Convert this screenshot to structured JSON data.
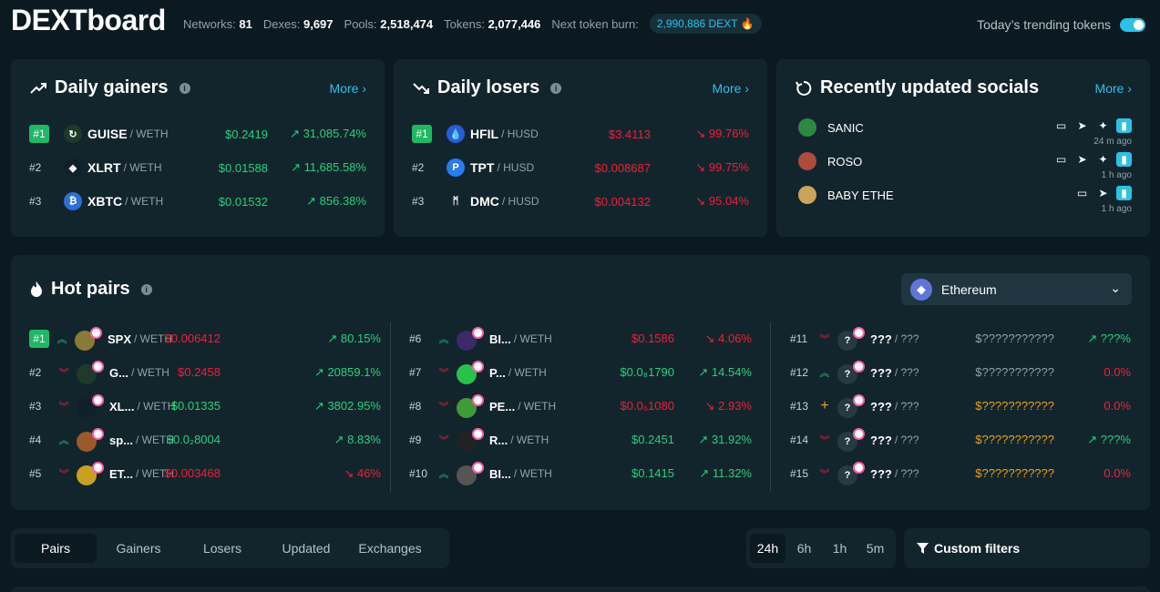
{
  "header": {
    "logo": "DEXTboard",
    "stats": [
      {
        "key": "Networks:",
        "value": "81"
      },
      {
        "key": "Dexes:",
        "value": "9,697"
      },
      {
        "key": "Pools:",
        "value": "2,518,474"
      },
      {
        "key": "Tokens:",
        "value": "2,077,446"
      }
    ],
    "burn_label": "Next token burn:",
    "burn_value": "2,990,886 DEXT 🔥",
    "trending_label": "Today’s trending tokens",
    "trending_on": true
  },
  "gainers": {
    "title": "Daily gainers",
    "more": "More ›",
    "rows": [
      {
        "rank": "#1",
        "symbol": "GUISE",
        "quote": "/ WETH",
        "price": "$0.2419",
        "change": "↗ 31,085.74%",
        "icon_bg": "#1d3a2a",
        "icon": "↻"
      },
      {
        "rank": "#2",
        "symbol": "XLRT",
        "quote": "/ WETH",
        "price": "$0.01588",
        "change": "↗ 11,685.58%",
        "icon_bg": "#10202a",
        "icon": "◆"
      },
      {
        "rank": "#3",
        "symbol": "XBTC",
        "quote": "/ WETH",
        "price": "$0.01532",
        "change": "↗ 856.38%",
        "icon_bg": "#2c6fd6",
        "icon": "₿"
      }
    ]
  },
  "losers": {
    "title": "Daily losers",
    "more": "More ›",
    "rows": [
      {
        "rank": "#1",
        "symbol": "HFIL",
        "quote": "/ HUSD",
        "price": "$3.4113",
        "change": "↘ 99.76%",
        "icon_bg": "#2a5bd7",
        "icon": "💧"
      },
      {
        "rank": "#2",
        "symbol": "TPT",
        "quote": "/ HUSD",
        "price": "$0.008687",
        "change": "↘ 99.75%",
        "icon_bg": "#2a7af0",
        "icon": "P"
      },
      {
        "rank": "#3",
        "symbol": "DMC",
        "quote": "/ HUSD",
        "price": "$0.004132",
        "change": "↘ 95.04%",
        "icon_bg": "#13252c",
        "icon": "ᛗ"
      }
    ]
  },
  "socials": {
    "title": "Recently updated socials",
    "more": "More ›",
    "rows": [
      {
        "name": "SANIC",
        "ago": "24 m ago",
        "avatar_bg": "#2b8a3e"
      },
      {
        "name": "ROSO",
        "ago": "1 h ago",
        "avatar_bg": "#b04a3a"
      },
      {
        "name": "BABY ETHE",
        "ago": "1 h ago",
        "avatar_bg": "#c9a45a"
      }
    ]
  },
  "hot": {
    "title": "Hot pairs",
    "network": "Ethereum",
    "col1": [
      {
        "rank": "#1",
        "trend": "up",
        "symbol": "SPX",
        "quote": "/ WETH",
        "price": "$0.006412",
        "price_color": "down",
        "change": "↗ 80.15%",
        "change_color": "up",
        "icon_bg": "#8a7a3a"
      },
      {
        "rank": "#2",
        "trend": "down",
        "symbol": "G...",
        "quote": "/ WETH",
        "price": "$0.2458",
        "price_color": "down",
        "change": "↗ 20859.1%",
        "change_color": "up",
        "icon_bg": "#1d3a2a"
      },
      {
        "rank": "#3",
        "trend": "down",
        "symbol": "XL...",
        "quote": "/ WETH",
        "price": "$0.01335",
        "price_color": "up",
        "change": "↗ 3802.95%",
        "change_color": "up",
        "icon_bg": "#10202a"
      },
      {
        "rank": "#4",
        "trend": "up",
        "symbol": "sp...",
        "quote": "/ WETH",
        "price": "$0.0₂8004",
        "price_color": "up",
        "change": "↗ 8.83%",
        "change_color": "up",
        "icon_bg": "#9a5a2a"
      },
      {
        "rank": "#5",
        "trend": "down",
        "symbol": "ET...",
        "quote": "/ WETH",
        "price": "$0.003468",
        "price_color": "down",
        "change": "↘ 46%",
        "change_color": "down",
        "icon_bg": "#c9a020"
      }
    ],
    "col2": [
      {
        "rank": "#6",
        "trend": "up",
        "symbol": "BI...",
        "quote": "/ WETH",
        "price": "$0.1586",
        "price_color": "down",
        "change": "↘ 4.06%",
        "change_color": "down",
        "icon_bg": "#3a2a6a"
      },
      {
        "rank": "#7",
        "trend": "down",
        "symbol": "P...",
        "quote": "/ WETH",
        "price": "$0.0₈1790",
        "price_color": "up",
        "change": "↗ 14.54%",
        "change_color": "up",
        "icon_bg": "#27c24c"
      },
      {
        "rank": "#8",
        "trend": "down",
        "symbol": "PE...",
        "quote": "/ WETH",
        "price": "$0.0₆1080",
        "price_color": "down",
        "change": "↘ 2.93%",
        "change_color": "down",
        "icon_bg": "#3f9a3a"
      },
      {
        "rank": "#9",
        "trend": "down",
        "symbol": "R...",
        "quote": "/ WETH",
        "price": "$0.2451",
        "price_color": "up",
        "change": "↗ 31.92%",
        "change_color": "up",
        "icon_bg": "#222"
      },
      {
        "rank": "#10",
        "trend": "up",
        "symbol": "BI...",
        "quote": "/ WETH",
        "price": "$0.1415",
        "price_color": "up",
        "change": "↗ 11.32%",
        "change_color": "up",
        "icon_bg": "#555"
      }
    ],
    "col3": [
      {
        "rank": "#11",
        "trend": "down",
        "symbol": "???",
        "quote": "/ ???",
        "price": "$???????????",
        "price_color": "muted",
        "change": "↗ ???%",
        "change_color": "up"
      },
      {
        "rank": "#12",
        "trend": "up",
        "symbol": "???",
        "quote": "/ ???",
        "price": "$???????????",
        "price_color": "muted",
        "change": "0.0%",
        "change_color": "down"
      },
      {
        "rank": "#13",
        "trend": "new",
        "symbol": "???",
        "quote": "/ ???",
        "price": "$???????????",
        "price_color": "warn",
        "change": "0.0%",
        "change_color": "down"
      },
      {
        "rank": "#14",
        "trend": "down",
        "symbol": "???",
        "quote": "/ ???",
        "price": "$???????????",
        "price_color": "warn",
        "change": "↗ ???%",
        "change_color": "up"
      },
      {
        "rank": "#15",
        "trend": "down",
        "symbol": "???",
        "quote": "/ ???",
        "price": "$???????????",
        "price_color": "warn",
        "change": "0.0%",
        "change_color": "down"
      }
    ]
  },
  "tabs": [
    "Pairs",
    "Gainers",
    "Losers",
    "Updated",
    "Exchanges"
  ],
  "active_tab": "Pairs",
  "ranges": [
    "24h",
    "6h",
    "1h",
    "5m"
  ],
  "active_range": "24h",
  "filters_label": "Custom filters",
  "colors": {
    "accent": "#2fc0e6",
    "up": "#27d07a",
    "down": "#ef1f3b",
    "bg": "#0b1a20",
    "card": "#13252c"
  }
}
